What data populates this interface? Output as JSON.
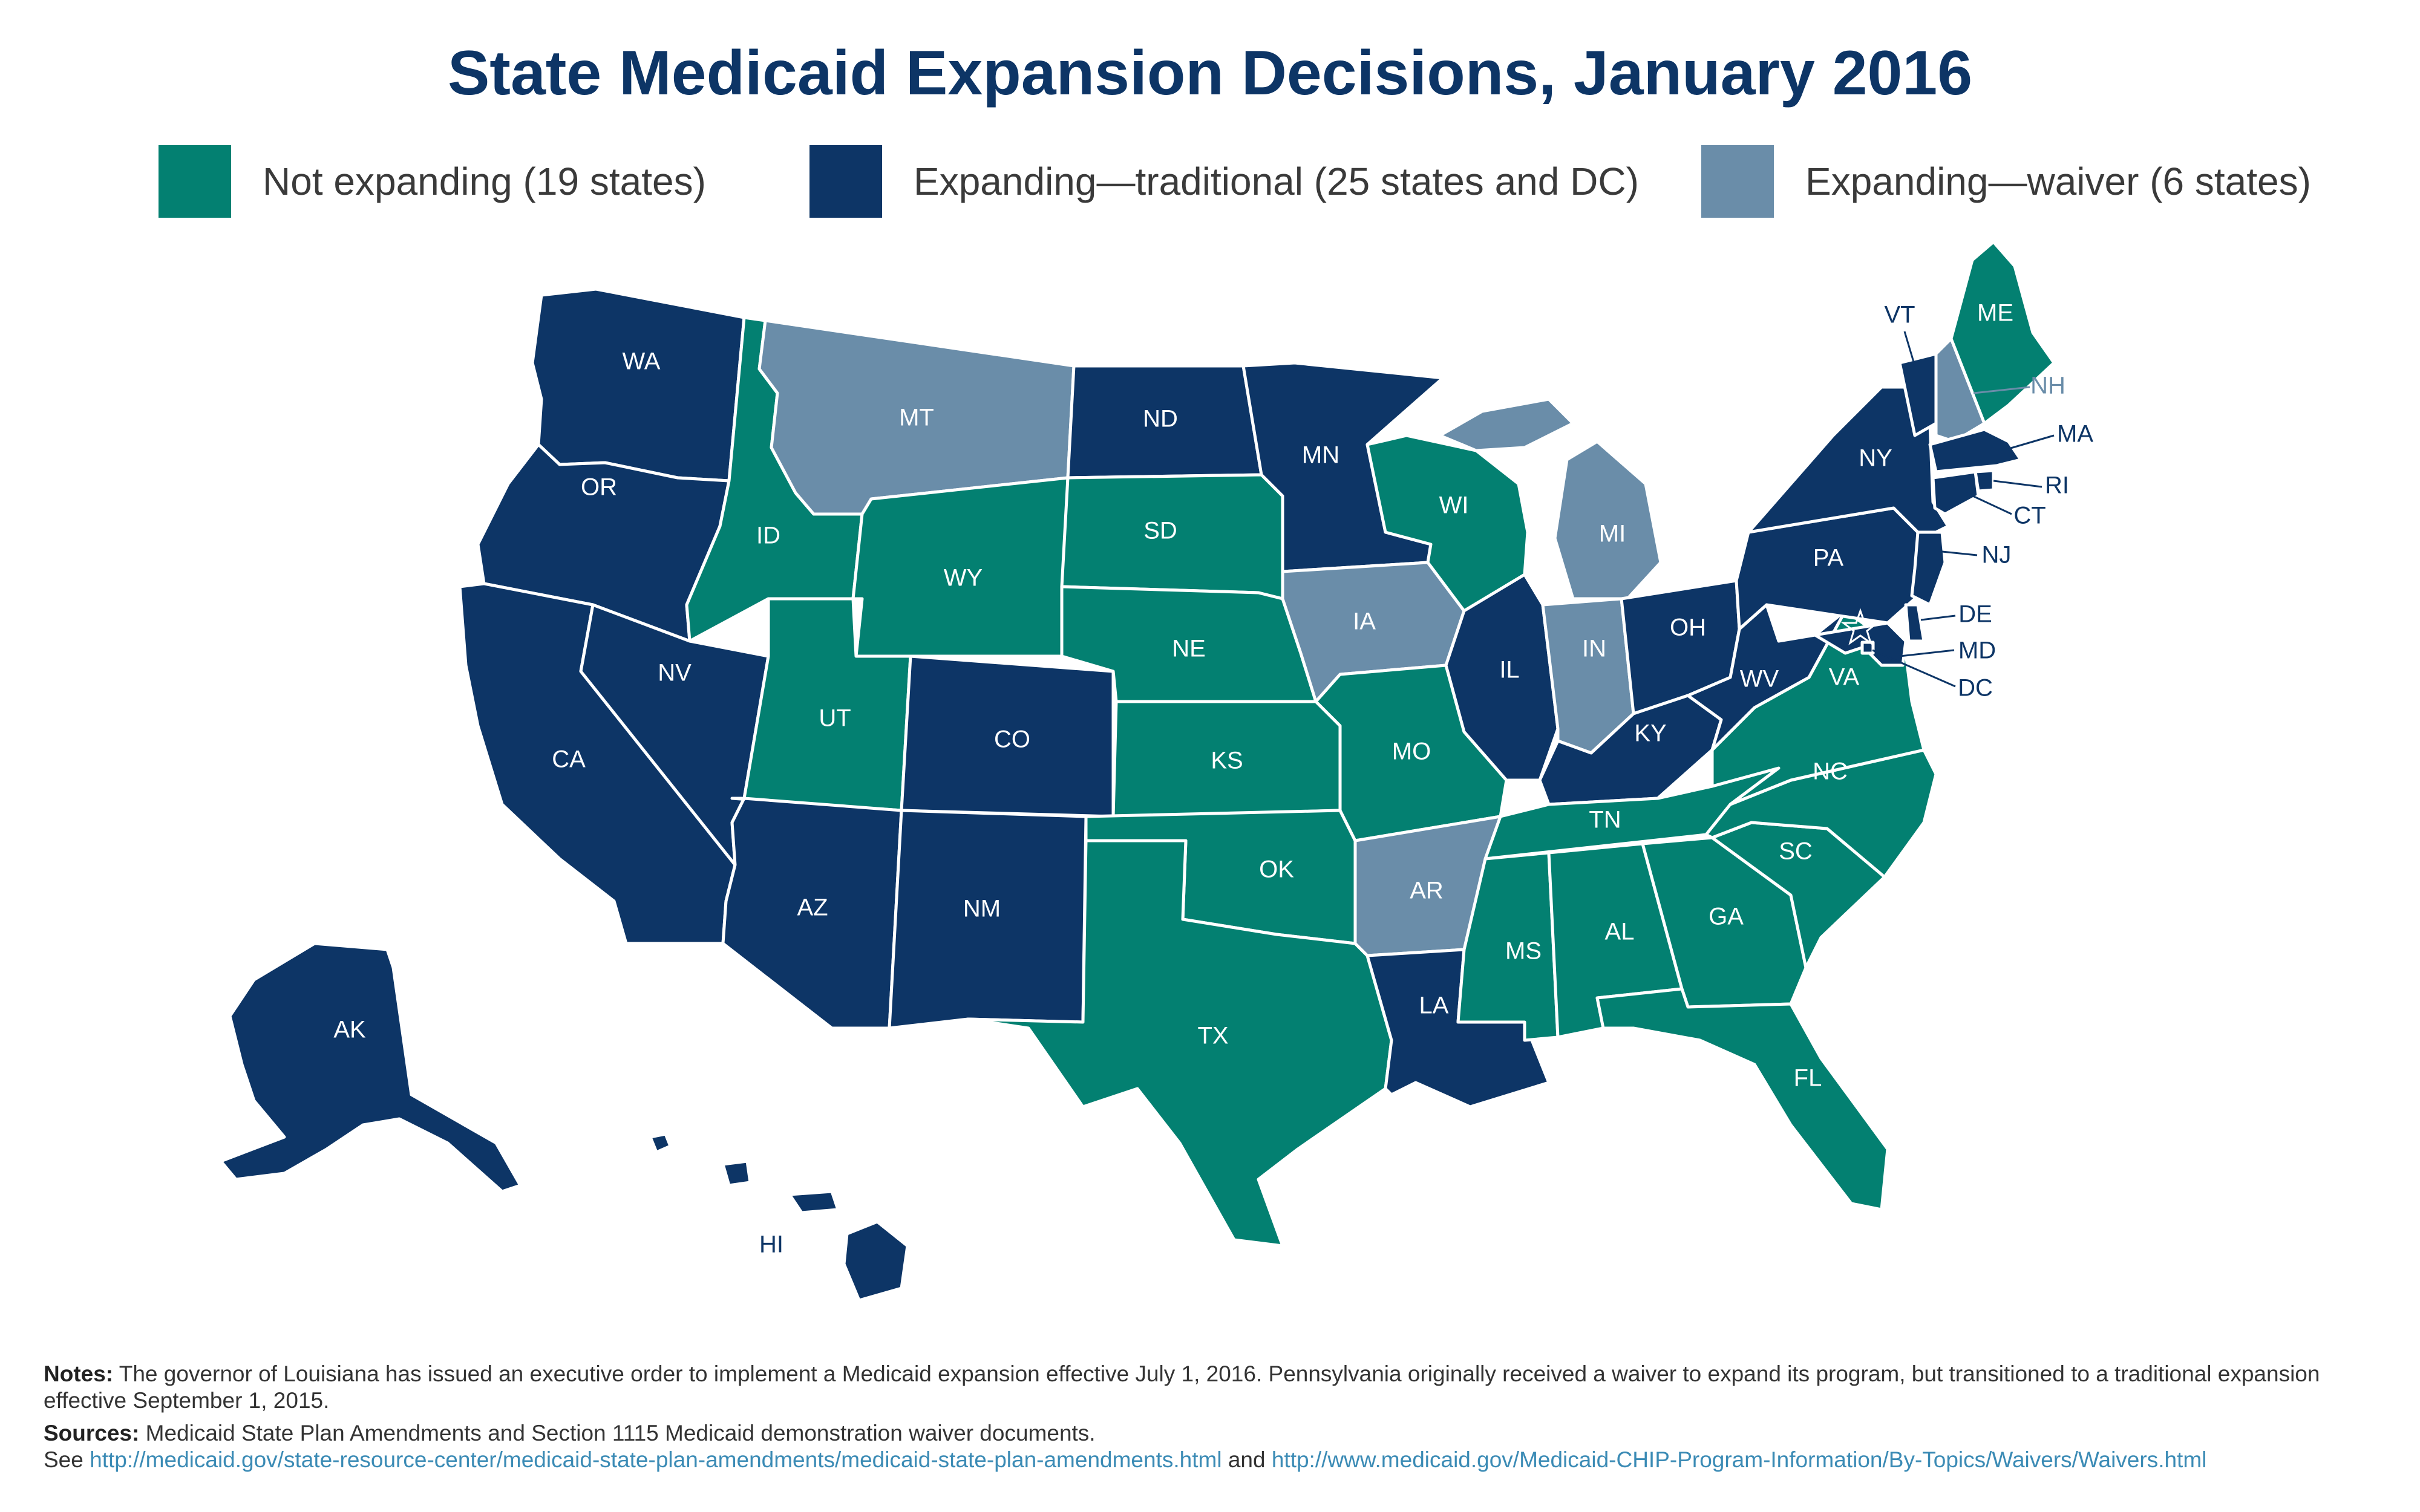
{
  "title": "State Medicaid Expansion Decisions, January 2016",
  "colors": {
    "not_expanding": "#038071",
    "traditional": "#0d3566",
    "waiver": "#6a8da9"
  },
  "legend": [
    {
      "key": "not_expanding",
      "label": "Not expanding (19 states)"
    },
    {
      "key": "traditional",
      "label": "Expanding—traditional (25 states and DC)"
    },
    {
      "key": "waiver",
      "label": "Expanding—waiver (6 states)"
    }
  ],
  "states": {
    "WA": "traditional",
    "OR": "traditional",
    "CA": "traditional",
    "NV": "traditional",
    "ID": "not_expanding",
    "MT": "waiver",
    "WY": "not_expanding",
    "UT": "not_expanding",
    "AZ": "traditional",
    "CO": "traditional",
    "NM": "traditional",
    "ND": "traditional",
    "SD": "not_expanding",
    "NE": "not_expanding",
    "KS": "not_expanding",
    "OK": "not_expanding",
    "TX": "not_expanding",
    "MN": "traditional",
    "IA": "waiver",
    "MO": "not_expanding",
    "AR": "waiver",
    "LA": "traditional",
    "WI": "not_expanding",
    "IL": "traditional",
    "MI": "waiver",
    "IN": "waiver",
    "OH": "traditional",
    "KY": "traditional",
    "TN": "not_expanding",
    "MS": "not_expanding",
    "AL": "not_expanding",
    "GA": "not_expanding",
    "FL": "not_expanding",
    "SC": "not_expanding",
    "NC": "not_expanding",
    "VA": "not_expanding",
    "WV": "traditional",
    "PA": "traditional",
    "NY": "traditional",
    "VT": "traditional",
    "NH": "waiver",
    "ME": "not_expanding",
    "MA": "traditional",
    "RI": "traditional",
    "CT": "traditional",
    "NJ": "traditional",
    "DE": "traditional",
    "MD": "traditional",
    "DC": "traditional",
    "AK": "traditional",
    "HI": "traditional"
  },
  "notes": {
    "notes_label": "Notes:",
    "notes_text": "The governor of Louisiana has issued an executive order to implement a Medicaid expansion effective July 1, 2016. Pennsylvania originally received a waiver to expand its program, but transitioned to a traditional expansion effective September 1, 2015.",
    "sources_label": "Sources:",
    "sources_text": "Medicaid State Plan Amendments and Section 1115 Medicaid demonstration waiver documents.",
    "see_label": "See",
    "link1": "http://medicaid.gov/state-resource-center/medicaid-state-plan-amendments/medicaid-state-plan-amendments.html",
    "and_label": "and",
    "link2": "http://www.medicaid.gov/Medicaid-CHIP-Program-Information/By-Topics/Waivers/Waivers.html"
  }
}
